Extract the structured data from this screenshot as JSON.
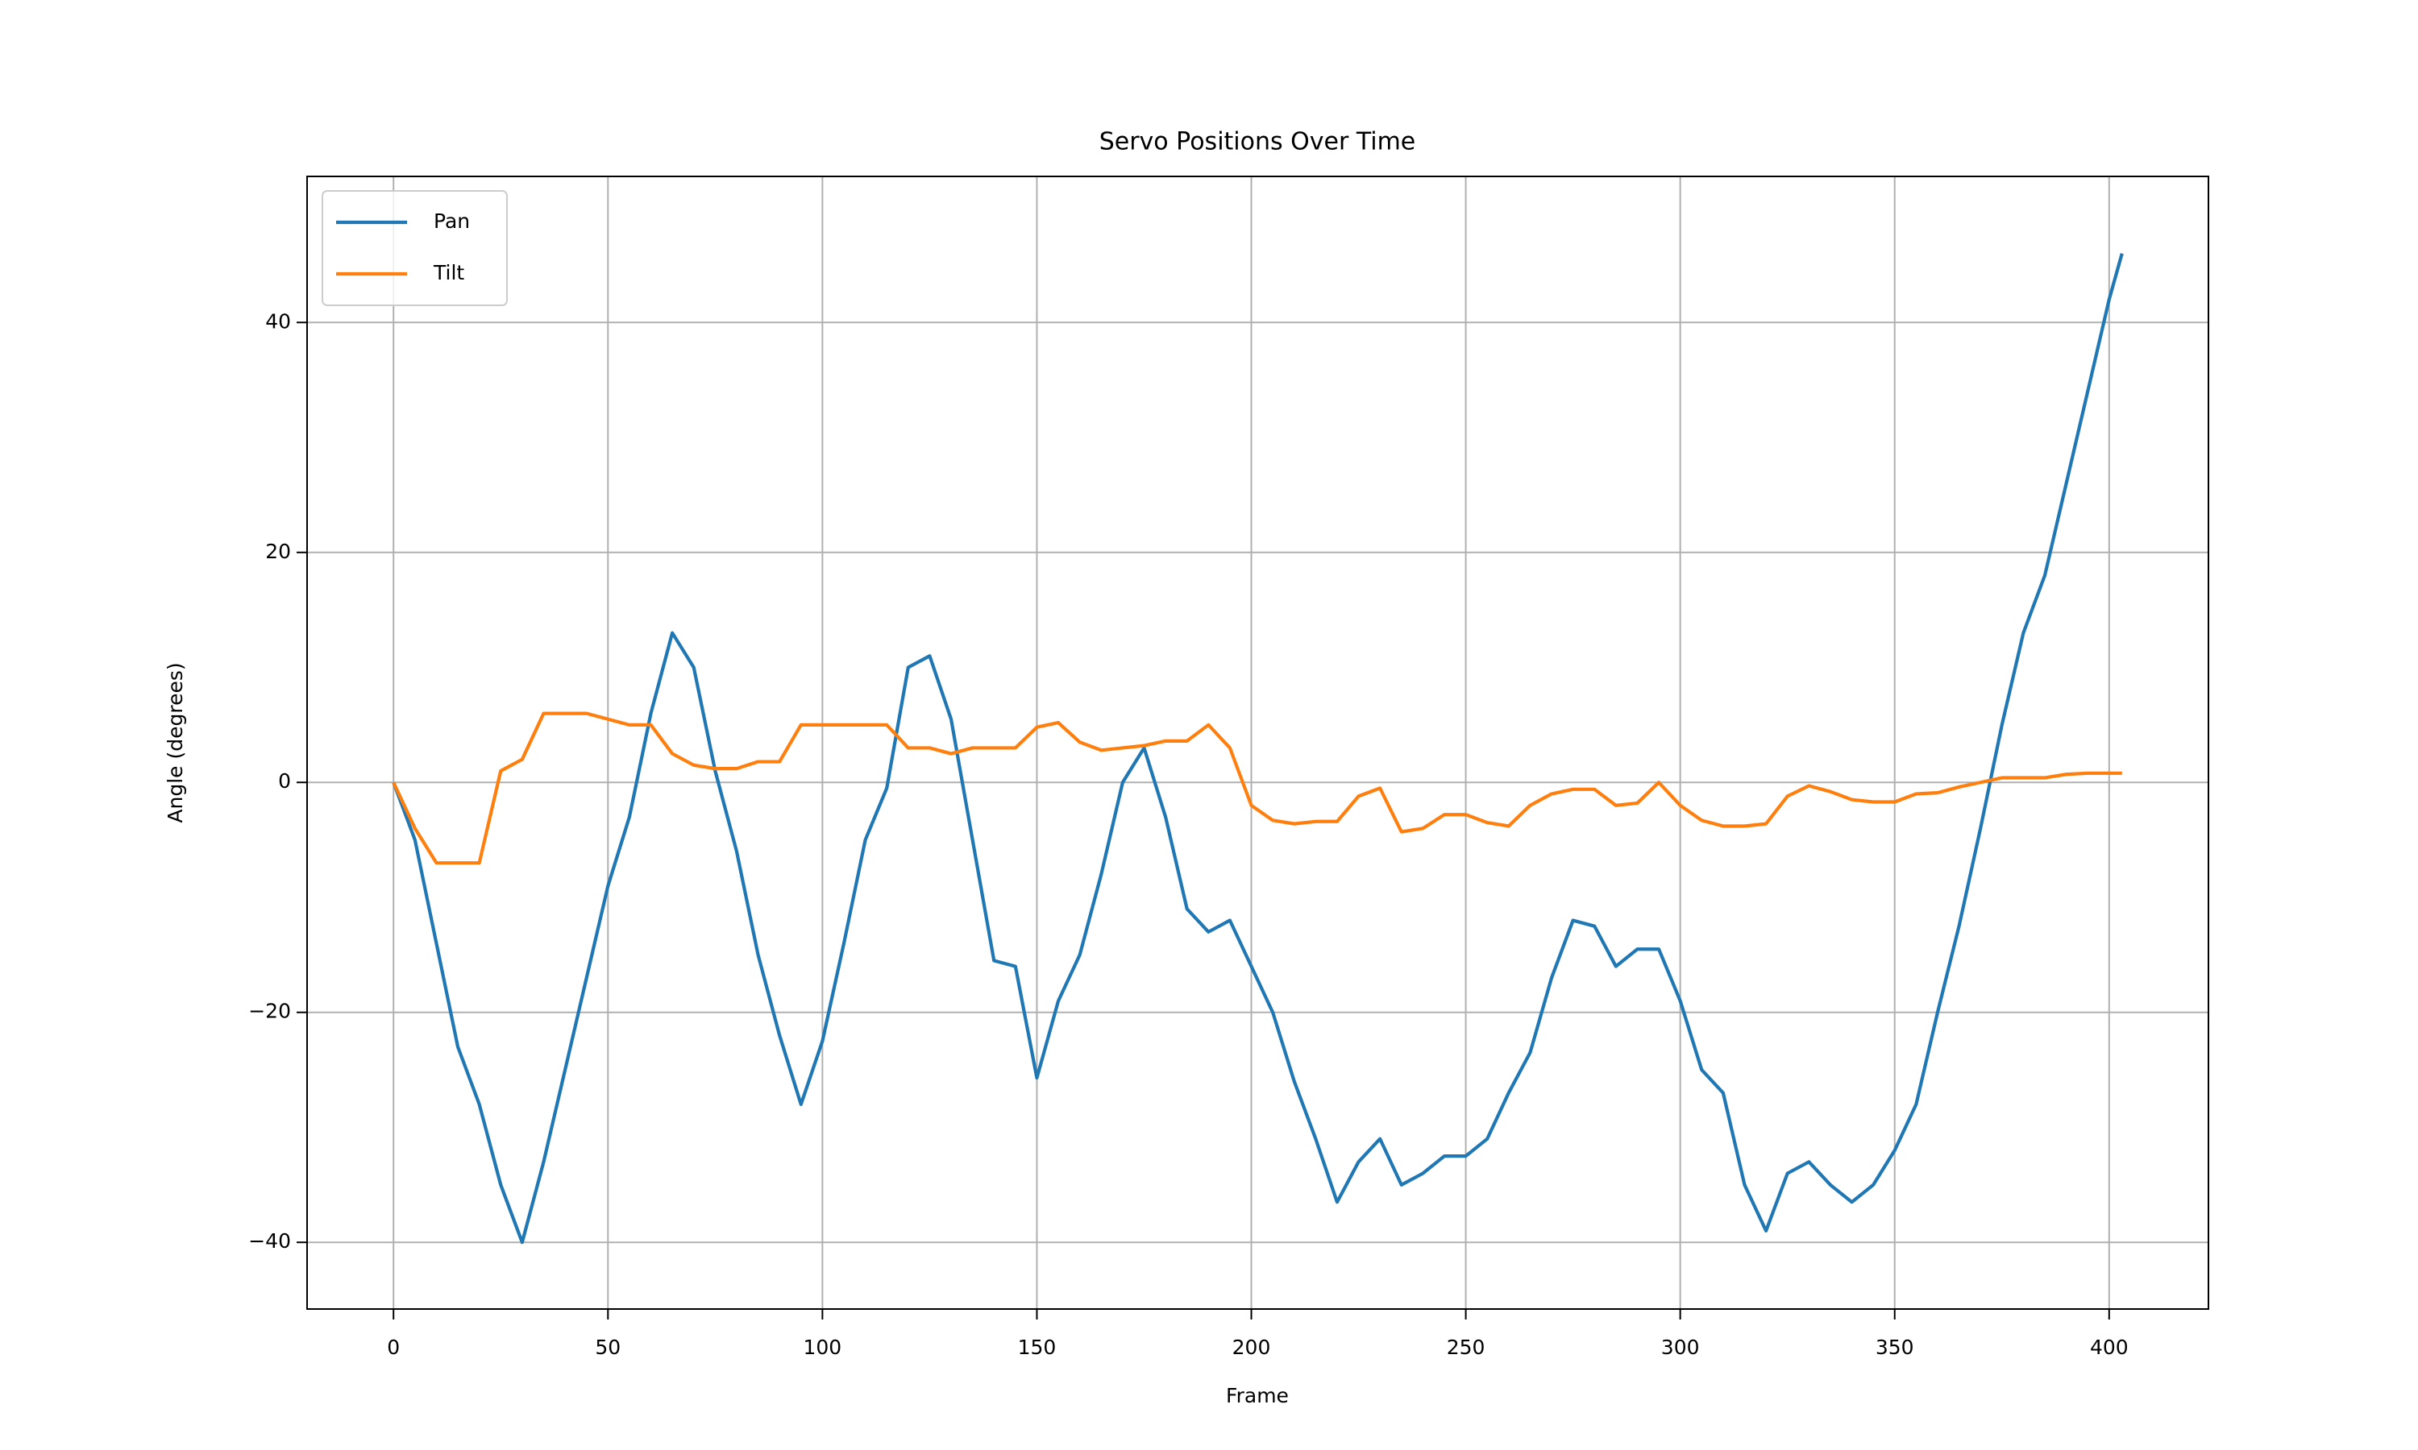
{
  "chart_data": {
    "type": "line",
    "title": "Servo Positions Over Time",
    "xlabel": "Frame",
    "ylabel": "Angle (degrees)",
    "x": [
      0,
      5,
      10,
      15,
      20,
      25,
      30,
      35,
      40,
      45,
      50,
      55,
      60,
      65,
      70,
      75,
      80,
      85,
      90,
      95,
      100,
      105,
      110,
      115,
      120,
      125,
      130,
      135,
      140,
      145,
      150,
      155,
      160,
      165,
      170,
      175,
      180,
      185,
      190,
      195,
      200,
      205,
      210,
      215,
      220,
      225,
      230,
      235,
      240,
      245,
      250,
      255,
      260,
      265,
      270,
      275,
      280,
      285,
      290,
      295,
      300,
      305,
      310,
      315,
      320,
      325,
      330,
      335,
      340,
      345,
      350,
      355,
      360,
      365,
      370,
      375,
      380,
      385,
      390,
      395,
      400,
      403
    ],
    "series": [
      {
        "name": "Pan",
        "color": "#1f77b4",
        "values": [
          0,
          -5,
          -14,
          -23,
          -28,
          -35,
          -40,
          -33,
          -25,
          -17,
          -9,
          -3,
          6,
          13,
          10,
          1,
          -6,
          -15,
          -22,
          -28,
          -22.5,
          -14,
          -5,
          -0.5,
          10,
          11,
          5.5,
          -5,
          -15.5,
          -16,
          -25.7,
          -19,
          -15,
          -8,
          0,
          3,
          -3,
          -11,
          -13,
          -12,
          -16,
          -20,
          -26,
          -31,
          -36.5,
          -33,
          -31,
          -35,
          -34,
          -32.5,
          -32.5,
          -31,
          -27,
          -23.5,
          -17,
          -12,
          -12.5,
          -16,
          -14.5,
          -14.5,
          -19,
          -25,
          -27,
          -35,
          -39,
          -34,
          -33,
          -35,
          -36.5,
          -35,
          -32,
          -28,
          -20,
          -12.5,
          -4,
          5,
          13,
          18,
          26,
          34,
          42,
          46
        ]
      },
      {
        "name": "Tilt",
        "color": "#ff7f0e",
        "values": [
          0,
          -4,
          -7,
          -7,
          -7,
          1,
          2,
          6,
          6,
          6,
          5.5,
          5,
          5,
          2.5,
          1.5,
          1.2,
          1.2,
          1.8,
          1.8,
          5,
          5,
          5,
          5,
          5,
          3,
          3,
          2.5,
          3,
          3,
          3,
          4.8,
          5.2,
          3.5,
          2.8,
          3,
          3.2,
          3.6,
          3.6,
          5,
          3,
          -2,
          -3.3,
          -3.6,
          -3.4,
          -3.4,
          -1.2,
          -0.5,
          -4.3,
          -4,
          -2.8,
          -2.8,
          -3.5,
          -3.8,
          -2,
          -1,
          -0.6,
          -0.6,
          -2,
          -1.8,
          0,
          -2,
          -3.3,
          -3.8,
          -3.8,
          -3.6,
          -1.2,
          -0.3,
          -0.8,
          -1.5,
          -1.7,
          -1.7,
          -1,
          -0.9,
          -0.4,
          0,
          0.4,
          0.4,
          0.4,
          0.7,
          0.8,
          0.8,
          0.8
        ]
      }
    ],
    "xlim": [
      -20.15,
      423.15
    ],
    "xticks": [
      0,
      50,
      100,
      150,
      200,
      250,
      300,
      350,
      400
    ],
    "ylim": [
      -45.8,
      52.7
    ],
    "yticks": [
      {
        "value": -40,
        "label": "−40"
      },
      {
        "value": -20,
        "label": "−20"
      },
      0,
      20,
      40
    ],
    "grid": true,
    "legend": "upper left"
  }
}
